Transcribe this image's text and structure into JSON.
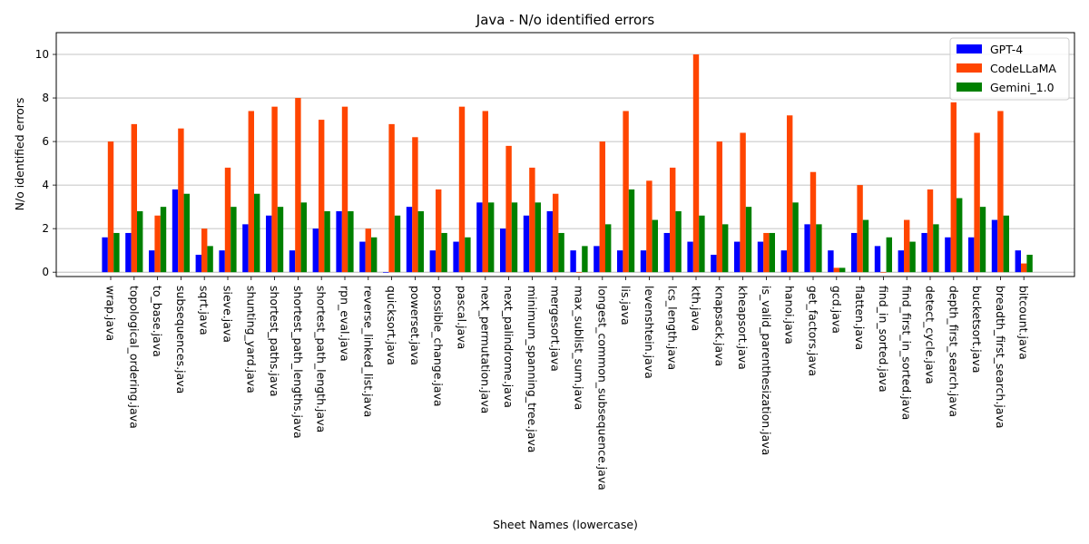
{
  "chart_data": {
    "type": "bar",
    "title": "Java - N/o identified errors",
    "xlabel": "Sheet Names (lowercase)",
    "ylabel": "N/o identified errors",
    "ylim": [
      -0.2,
      11
    ],
    "yticks": [
      0,
      2,
      4,
      6,
      8,
      10
    ],
    "grid": "y-axis",
    "legend_position": "top-right",
    "categories": [
      "wrap.java",
      "topological_ordering.java",
      "to_base.java",
      "subsequences.java",
      "sqrt.java",
      "sieve.java",
      "shunting_yard.java",
      "shortest_paths.java",
      "shortest_path_lengths.java",
      "shortest_path_length.java",
      "rpn_eval.java",
      "reverse_linked_list.java",
      "quicksort.java",
      "powerset.java",
      "possible_change.java",
      "pascal.java",
      "next_permutation.java",
      "next_palindrome.java",
      "minimum_spanning_tree.java",
      "mergesort.java",
      "max_sublist_sum.java",
      "longest_common_subsequence.java",
      "lis.java",
      "levenshtein.java",
      "lcs_length.java",
      "kth.java",
      "knapsack.java",
      "kheapsort.java",
      "is_valid_parenthesization.java",
      "hanoi.java",
      "get_factors.java",
      "gcd.java",
      "flatten.java",
      "find_in_sorted.java",
      "find_first_in_sorted.java",
      "detect_cycle.java",
      "depth_first_search.java",
      "bucketsort.java",
      "breadth_first_search.java",
      "bitcount.java"
    ],
    "series": [
      {
        "name": "GPT-4",
        "color": "#0000ff",
        "values": [
          1.6,
          1.8,
          1.0,
          3.8,
          0.8,
          1.0,
          2.2,
          2.6,
          1.0,
          2.0,
          2.8,
          1.4,
          0.0,
          3.0,
          1.0,
          1.4,
          3.2,
          2.0,
          2.6,
          2.8,
          1.0,
          1.2,
          1.0,
          1.0,
          1.8,
          1.4,
          0.8,
          1.4,
          1.4,
          1.0,
          2.2,
          1.0,
          1.8,
          1.2,
          1.0,
          1.8,
          1.6,
          1.6,
          2.4,
          1.0
        ]
      },
      {
        "name": "CodeLLaMA",
        "color": "#ff4500",
        "values": [
          6.0,
          6.8,
          2.6,
          6.6,
          2.0,
          4.8,
          7.4,
          7.6,
          8.0,
          7.0,
          7.6,
          2.0,
          6.8,
          6.2,
          3.8,
          7.6,
          7.4,
          5.8,
          4.8,
          3.6,
          0.0,
          6.0,
          7.4,
          4.2,
          4.8,
          10.0,
          6.0,
          6.4,
          1.8,
          7.2,
          4.6,
          0.2,
          4.0,
          0.0,
          2.4,
          3.8,
          7.8,
          6.4,
          7.4,
          0.4
        ]
      },
      {
        "name": "Gemini_1.0",
        "color": "#008000",
        "values": [
          1.8,
          2.8,
          3.0,
          3.6,
          1.2,
          3.0,
          3.6,
          3.0,
          3.2,
          2.8,
          2.8,
          1.6,
          2.6,
          2.8,
          1.8,
          1.6,
          3.2,
          3.2,
          3.2,
          1.8,
          1.2,
          2.2,
          3.8,
          2.4,
          2.8,
          2.6,
          2.2,
          3.0,
          1.8,
          3.2,
          2.2,
          0.2,
          2.4,
          1.6,
          1.4,
          2.2,
          3.4,
          3.0,
          2.6,
          0.8
        ]
      }
    ]
  }
}
